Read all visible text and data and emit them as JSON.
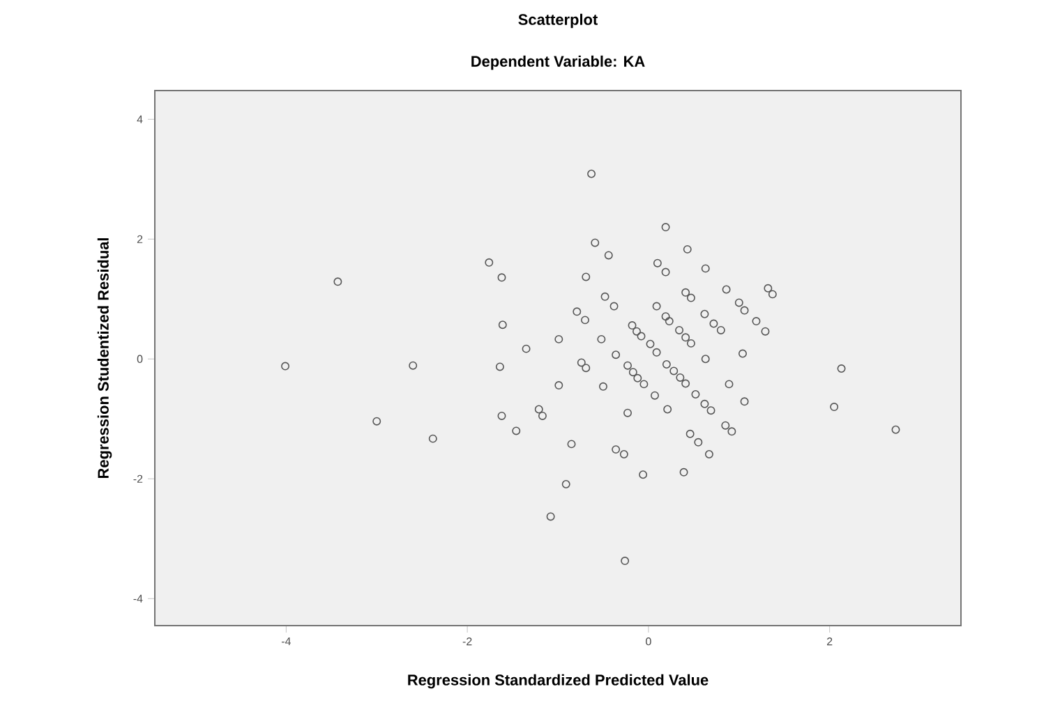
{
  "chart_data": {
    "type": "scatter",
    "title": "Scatterplot",
    "subtitle": "Dependent Variable: KA",
    "xlabel": "Regression Standardized Predicted Value",
    "ylabel": "Regression Studentized Residual",
    "xlim": [
      -5.45,
      3.45
    ],
    "ylim": [
      -4.45,
      4.48
    ],
    "xticks": [
      -4,
      -2,
      0,
      2
    ],
    "yticks": [
      -4,
      -2,
      0,
      2,
      4
    ],
    "marker": "circle",
    "color": "#555555",
    "x": [
      -0.63,
      -0.59,
      -1.76,
      -1.62,
      -0.69,
      -3.43,
      -0.79,
      -0.7,
      -1.61,
      -0.99,
      -1.35,
      -0.74,
      -0.69,
      -4.01,
      -2.6,
      -1.64,
      -0.99,
      -3.0,
      -1.21,
      -1.17,
      -1.62,
      -1.46,
      -2.38,
      -0.85,
      -0.91,
      -1.08,
      0.19,
      -0.44,
      0.43,
      0.1,
      0.19,
      0.63,
      0.86,
      1.32,
      1.37,
      0.41,
      0.47,
      -0.48,
      -0.38,
      1.0,
      1.06,
      1.19,
      1.29,
      0.09,
      0.19,
      0.23,
      0.62,
      0.72,
      0.8,
      0.34,
      0.41,
      0.47,
      -0.52,
      -0.18,
      -0.13,
      -0.08,
      0.02,
      0.09,
      1.04,
      0.63,
      -0.36,
      0.2,
      0.28,
      0.35,
      0.41,
      -0.23,
      -0.17,
      -0.12,
      -0.05,
      -0.5,
      0.07,
      0.21,
      -0.23,
      0.52,
      0.62,
      0.69,
      0.89,
      1.06,
      0.85,
      0.92,
      0.46,
      0.55,
      0.67,
      -0.36,
      -0.27,
      -0.06,
      0.39,
      -0.26,
      2.13,
      2.05,
      2.73
    ],
    "values": [
      3.09,
      1.94,
      1.61,
      1.36,
      1.37,
      1.29,
      0.79,
      0.65,
      0.57,
      0.33,
      0.17,
      -0.06,
      -0.15,
      -0.12,
      -0.11,
      -0.13,
      -0.44,
      -1.04,
      -0.84,
      -0.95,
      -0.95,
      -1.2,
      -1.33,
      -1.42,
      -2.09,
      -2.63,
      2.2,
      1.73,
      1.83,
      1.6,
      1.45,
      1.51,
      1.16,
      1.18,
      1.08,
      1.11,
      1.02,
      1.04,
      0.88,
      0.94,
      0.81,
      0.63,
      0.46,
      0.88,
      0.71,
      0.63,
      0.75,
      0.59,
      0.48,
      0.48,
      0.36,
      0.26,
      0.33,
      0.56,
      0.46,
      0.38,
      0.25,
      0.11,
      0.09,
      0.0,
      0.07,
      -0.09,
      -0.2,
      -0.31,
      -0.41,
      -0.11,
      -0.22,
      -0.32,
      -0.42,
      -0.46,
      -0.61,
      -0.84,
      -0.9,
      -0.59,
      -0.75,
      -0.86,
      -0.42,
      -0.71,
      -1.11,
      -1.21,
      -1.25,
      -1.39,
      -1.59,
      -1.51,
      -1.59,
      -1.93,
      -1.89,
      -3.37,
      -0.16,
      -0.8,
      -1.18
    ]
  }
}
